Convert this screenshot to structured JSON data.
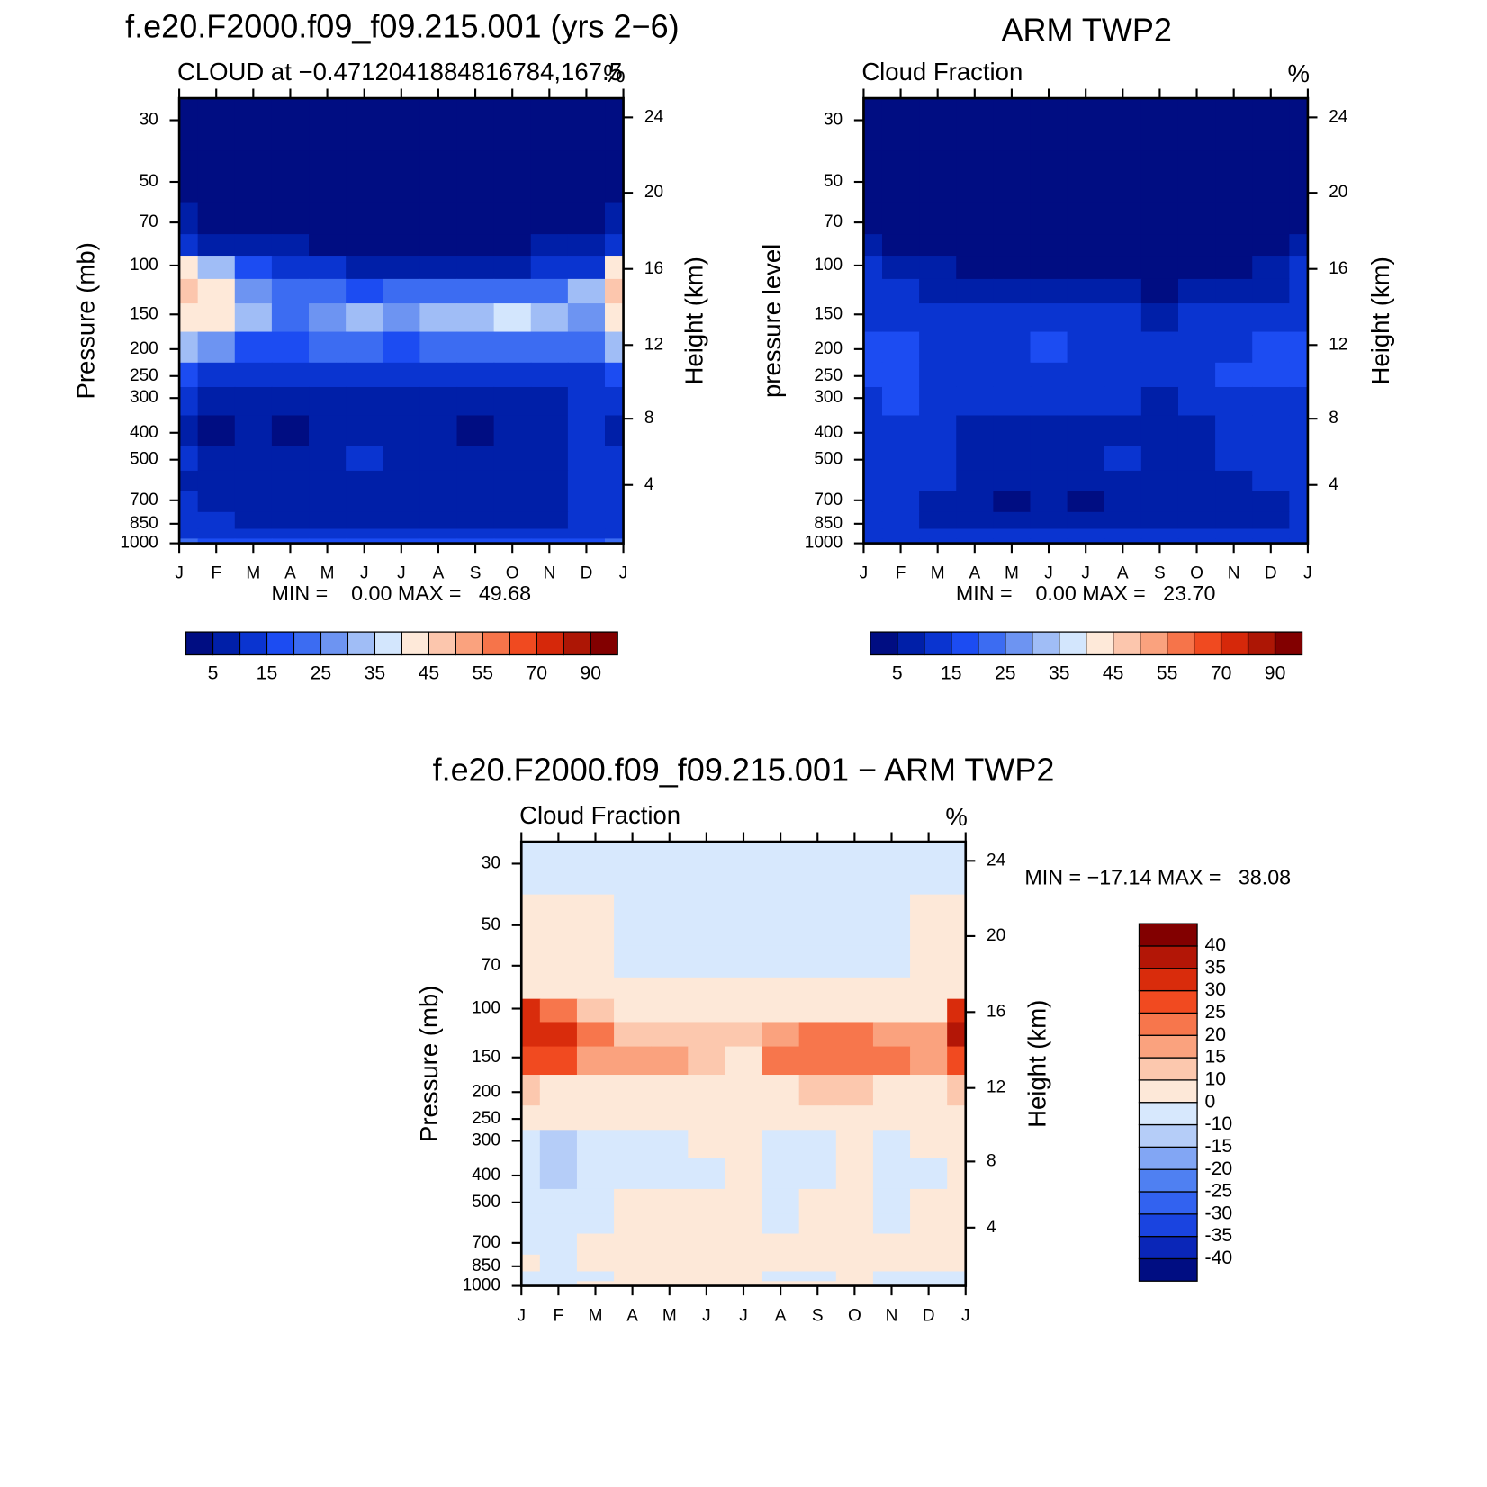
{
  "chart_data": [
    {
      "type": "contour",
      "title": "f.e20.F2000.f09_f09.215.001 (yrs 2−6)",
      "subtitle": "CLOUD at −0.4712041884816784,167.5",
      "units": "%",
      "ylabel": "Pressure (mb)",
      "y2label": "Height (km)",
      "stats": "MIN =    0.00 MAX =   49.68",
      "categories": [
        "J",
        "F",
        "M",
        "A",
        "M",
        "J",
        "J",
        "A",
        "S",
        "O",
        "N",
        "D",
        "J"
      ],
      "ylog": true,
      "ylim": [
        1000,
        25
      ],
      "yticks": [
        30,
        50,
        70,
        100,
        150,
        200,
        250,
        300,
        400,
        500,
        700,
        850,
        1000
      ],
      "y2ticks": [
        4,
        8,
        12,
        16,
        20,
        24
      ],
      "y": [
        30,
        50,
        70,
        85,
        100,
        125,
        150,
        200,
        250,
        300,
        400,
        500,
        600,
        700,
        850,
        925,
        1000
      ],
      "z": [
        [
          1,
          1,
          1,
          1,
          1,
          1,
          1,
          1,
          1,
          1,
          1,
          1,
          1
        ],
        [
          1,
          1,
          1,
          1,
          1,
          1,
          1,
          1,
          1,
          1,
          1,
          1,
          1
        ],
        [
          6,
          4,
          3,
          2,
          2,
          1,
          1,
          1,
          1,
          1,
          2,
          4,
          6
        ],
        [
          12,
          8,
          6,
          5,
          4,
          3,
          3,
          3,
          3,
          4,
          5,
          8,
          14
        ],
        [
          40,
          30,
          16,
          12,
          10,
          8,
          7,
          8,
          9,
          9,
          10,
          14,
          40
        ],
        [
          45,
          42,
          28,
          20,
          20,
          18,
          20,
          22,
          22,
          24,
          20,
          30,
          45
        ],
        [
          43,
          40,
          30,
          22,
          26,
          30,
          25,
          32,
          34,
          35,
          30,
          28,
          40
        ],
        [
          30,
          25,
          18,
          18,
          20,
          22,
          18,
          24,
          24,
          22,
          22,
          22,
          30
        ],
        [
          18,
          14,
          12,
          14,
          14,
          14,
          12,
          14,
          14,
          14,
          14,
          14,
          18
        ],
        [
          10,
          8,
          7,
          8,
          8,
          8,
          8,
          8,
          8,
          8,
          9,
          10,
          12
        ],
        [
          8,
          4,
          7,
          4,
          6,
          7,
          7,
          6,
          4,
          6,
          8,
          10,
          9
        ],
        [
          10,
          8,
          8,
          7,
          8,
          11,
          8,
          7,
          8,
          8,
          9,
          12,
          11
        ],
        [
          9,
          8,
          8,
          7,
          8,
          9,
          8,
          8,
          8,
          8,
          9,
          10,
          10
        ],
        [
          10,
          9,
          7,
          7,
          8,
          8,
          8,
          7,
          7,
          7,
          8,
          10,
          10
        ],
        [
          12,
          11,
          9,
          8,
          8,
          8,
          8,
          8,
          9,
          8,
          9,
          10,
          12
        ],
        [
          12,
          11,
          11,
          10,
          10,
          10,
          10,
          10,
          10,
          10,
          10,
          11,
          12
        ],
        [
          20,
          18,
          16,
          16,
          16,
          16,
          16,
          16,
          16,
          16,
          16,
          18,
          20
        ]
      ],
      "colorbar": {
        "orientation": "horizontal",
        "levels": [
          5,
          10,
          15,
          20,
          25,
          30,
          35,
          40,
          45,
          50,
          55,
          60,
          70,
          80,
          90
        ],
        "ticks": [
          5,
          15,
          25,
          35,
          45,
          55,
          70,
          90
        ],
        "colors": [
          "#000d82",
          "#001fa8",
          "#0a34d0",
          "#1c4cf2",
          "#3c6cf2",
          "#6d94f2",
          "#a0bdf6",
          "#d3e6fd",
          "#fee9d9",
          "#fcc6ad",
          "#faa27e",
          "#f6744a",
          "#f04a20",
          "#d6280a",
          "#ad1605",
          "#820000"
        ]
      }
    },
    {
      "type": "contour",
      "title": "ARM TWP2",
      "subtitle": "Cloud Fraction",
      "units": "%",
      "ylabel": "pressure level",
      "y2label": "Height (km)",
      "stats": "MIN =    0.00 MAX =   23.70",
      "categories": [
        "J",
        "F",
        "M",
        "A",
        "M",
        "J",
        "J",
        "A",
        "S",
        "O",
        "N",
        "D",
        "J"
      ],
      "ylog": true,
      "ylim": [
        1000,
        25
      ],
      "yticks": [
        30,
        50,
        70,
        100,
        150,
        200,
        250,
        300,
        400,
        500,
        700,
        850,
        1000
      ],
      "y2ticks": [
        4,
        8,
        12,
        16,
        20,
        24
      ],
      "y": [
        30,
        50,
        70,
        85,
        100,
        125,
        150,
        200,
        250,
        300,
        400,
        500,
        600,
        700,
        850,
        925,
        1000
      ],
      "z": [
        [
          1,
          1,
          1,
          1,
          1,
          1,
          1,
          1,
          1,
          1,
          1,
          1,
          1
        ],
        [
          1,
          1,
          1,
          1,
          1,
          1,
          1,
          1,
          1,
          1,
          1,
          1,
          1
        ],
        [
          2,
          2,
          2,
          2,
          2,
          2,
          2,
          2,
          2,
          2,
          2,
          2,
          2
        ],
        [
          5,
          4,
          3,
          2,
          2,
          2,
          2,
          2,
          2,
          2,
          2,
          3,
          5
        ],
        [
          10,
          8,
          6,
          4,
          4,
          3,
          3,
          3,
          3,
          3,
          4,
          6,
          10
        ],
        [
          13,
          12,
          9,
          7,
          6,
          6,
          6,
          6,
          4,
          6,
          6,
          8,
          12
        ],
        [
          14,
          14,
          12,
          12,
          12,
          12,
          12,
          10,
          8,
          10,
          11,
          12,
          14
        ],
        [
          16,
          18,
          14,
          13,
          13,
          16,
          14,
          12,
          12,
          13,
          14,
          15,
          17
        ],
        [
          16,
          17,
          14,
          13,
          12,
          14,
          12,
          11,
          12,
          14,
          15,
          15,
          16
        ],
        [
          14,
          16,
          13,
          12,
          12,
          12,
          12,
          10,
          9,
          11,
          14,
          13,
          14
        ],
        [
          13,
          13,
          12,
          9,
          9,
          9,
          9,
          9,
          7,
          7,
          10,
          12,
          13
        ],
        [
          12,
          12,
          12,
          9,
          9,
          9,
          9,
          11,
          6,
          6,
          10,
          11,
          12
        ],
        [
          11,
          12,
          10,
          8,
          8,
          8,
          8,
          8,
          6,
          6,
          8,
          10,
          11
        ],
        [
          11,
          11,
          9,
          8,
          4,
          7,
          4,
          7,
          5,
          5,
          7,
          9,
          11
        ],
        [
          11,
          11,
          9,
          8,
          8,
          8,
          8,
          8,
          8,
          8,
          8,
          9,
          11
        ],
        [
          13,
          12,
          12,
          12,
          12,
          12,
          12,
          12,
          12,
          12,
          12,
          12,
          13
        ],
        [
          10,
          10,
          10,
          10,
          10,
          10,
          10,
          10,
          10,
          10,
          10,
          10,
          10
        ]
      ],
      "colorbar": {
        "orientation": "horizontal",
        "levels": [
          5,
          10,
          15,
          20,
          25,
          30,
          35,
          40,
          45,
          50,
          55,
          60,
          70,
          80,
          90
        ],
        "ticks": [
          5,
          15,
          25,
          35,
          45,
          55,
          70,
          90
        ],
        "colors": [
          "#000d82",
          "#001fa8",
          "#0a34d0",
          "#1c4cf2",
          "#3c6cf2",
          "#6d94f2",
          "#a0bdf6",
          "#d3e6fd",
          "#fee9d9",
          "#fcc6ad",
          "#faa27e",
          "#f6744a",
          "#f04a20",
          "#d6280a",
          "#ad1605",
          "#820000"
        ]
      }
    },
    {
      "type": "contour",
      "title": "f.e20.F2000.f09_f09.215.001 − ARM TWP2",
      "subtitle": "Cloud Fraction",
      "units": "%",
      "ylabel": "Pressure (mb)",
      "y2label": "Height (km)",
      "stats": "MIN = −17.14 MAX =   38.08",
      "categories": [
        "J",
        "F",
        "M",
        "A",
        "M",
        "J",
        "J",
        "A",
        "S",
        "O",
        "N",
        "D",
        "J"
      ],
      "ylog": true,
      "ylim": [
        1000,
        25
      ],
      "yticks": [
        30,
        50,
        70,
        100,
        150,
        200,
        250,
        300,
        400,
        500,
        700,
        850,
        1000
      ],
      "y2ticks": [
        4,
        8,
        12,
        16,
        20,
        24
      ],
      "y": [
        30,
        50,
        70,
        85,
        100,
        125,
        150,
        200,
        250,
        300,
        400,
        500,
        600,
        700,
        850,
        925,
        1000
      ],
      "z": [
        [
          -2,
          -2,
          -2,
          -2,
          -2,
          -2,
          -2,
          -2,
          -2,
          -2,
          -2,
          -2,
          -2
        ],
        [
          2,
          2,
          2,
          -2,
          -2,
          -2,
          -2,
          -2,
          -2,
          -2,
          -2,
          2,
          2
        ],
        [
          3,
          3,
          3,
          -2,
          -2,
          -2,
          -2,
          -2,
          -2,
          -2,
          -2,
          2,
          3
        ],
        [
          6,
          5,
          4,
          3,
          3,
          2,
          2,
          3,
          3,
          3,
          3,
          5,
          8
        ],
        [
          30,
          22,
          12,
          8,
          6,
          5,
          4,
          5,
          6,
          6,
          6,
          8,
          30
        ],
        [
          32,
          33,
          20,
          14,
          14,
          12,
          10,
          16,
          22,
          22,
          18,
          18,
          35
        ],
        [
          28,
          28,
          18,
          15,
          15,
          12,
          8,
          20,
          24,
          24,
          20,
          18,
          26
        ],
        [
          14,
          8,
          6,
          6,
          6,
          6,
          4,
          8,
          10,
          10,
          8,
          8,
          14
        ],
        [
          4,
          2,
          2,
          2,
          2,
          3,
          2,
          2,
          2,
          2,
          2,
          4,
          4
        ],
        [
          -2,
          -14,
          -2,
          -4,
          -2,
          2,
          2,
          -2,
          -2,
          2,
          -2,
          2,
          2
        ],
        [
          -4,
          -12,
          -4,
          -8,
          -2,
          -2,
          2,
          -2,
          -2,
          2,
          -2,
          -2,
          2
        ],
        [
          -2,
          -2,
          -2,
          2,
          2,
          2,
          2,
          -2,
          2,
          2,
          -2,
          2,
          4
        ],
        [
          -2,
          -2,
          -2,
          2,
          2,
          2,
          2,
          -2,
          2,
          2,
          -2,
          2,
          2
        ],
        [
          -2,
          -2,
          2,
          2,
          2,
          2,
          2,
          2,
          2,
          2,
          2,
          2,
          2
        ],
        [
          2,
          -2,
          2,
          2,
          2,
          2,
          2,
          2,
          2,
          2,
          2,
          2,
          2
        ],
        [
          -2,
          -2,
          -2,
          2,
          2,
          2,
          2,
          -2,
          -2,
          2,
          -2,
          -2,
          -2
        ],
        [
          -2,
          -2,
          2,
          2,
          2,
          2,
          2,
          2,
          2,
          2,
          -2,
          -2,
          -2
        ]
      ],
      "colorbar": {
        "orientation": "vertical",
        "levels": [
          -40,
          -35,
          -30,
          -25,
          -20,
          -15,
          -10,
          0,
          10,
          15,
          20,
          25,
          30,
          35,
          40
        ],
        "ticks": [
          -40,
          -35,
          -30,
          -25,
          -20,
          -15,
          -10,
          0,
          10,
          15,
          20,
          25,
          30,
          35,
          40
        ],
        "colors": [
          "#000d82",
          "#0a26b8",
          "#1a44e0",
          "#3262f0",
          "#4f80f2",
          "#82a6f4",
          "#b5cdf8",
          "#d7e8fd",
          "#fde8d8",
          "#fcc8ae",
          "#faa27e",
          "#f7764c",
          "#f14a20",
          "#d92c0c",
          "#b31606",
          "#820000"
        ]
      }
    }
  ]
}
